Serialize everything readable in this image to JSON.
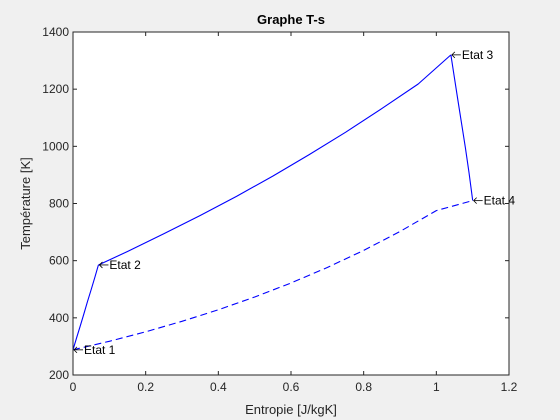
{
  "chart_data": {
    "type": "line",
    "title": "Graphe T-s",
    "xlabel": "Entropie [J/kgK]",
    "ylabel": "Température [K]",
    "xlim": [
      0,
      1.2
    ],
    "ylim": [
      200,
      1400
    ],
    "x_ticks": [
      0,
      0.2,
      0.4,
      0.6,
      0.8,
      1,
      1.2
    ],
    "x_tick_labels": [
      "0",
      "0.2",
      "0.4",
      "0.6",
      "0.8",
      "1",
      "1.2"
    ],
    "y_ticks": [
      200,
      400,
      600,
      800,
      1000,
      1200,
      1400
    ],
    "y_tick_labels": [
      "200",
      "400",
      "600",
      "800",
      "1000",
      "1200",
      "1400"
    ],
    "grid": false,
    "color": "#0000ff",
    "series": [
      {
        "style": "solid",
        "x": [
          0,
          0.01,
          0.02,
          0.03,
          0.04,
          0.05,
          0.06,
          0.07
        ],
        "y": [
          288,
          330,
          372,
          414,
          457,
          499,
          541,
          585
        ]
      },
      {
        "style": "solid",
        "x": [
          0.07,
          0.15,
          0.25,
          0.35,
          0.45,
          0.55,
          0.65,
          0.75,
          0.85,
          0.95,
          1.04
        ],
        "y": [
          585,
          632,
          694,
          758,
          825,
          896,
          971,
          1049,
          1132,
          1218,
          1320
        ]
      },
      {
        "style": "solid",
        "x": [
          1.04,
          1.05,
          1.06,
          1.07,
          1.08,
          1.09,
          1.1
        ],
        "y": [
          1320,
          1238,
          1157,
          1075,
          995,
          908,
          810
        ]
      },
      {
        "style": "dashed",
        "x": [
          0,
          0.1,
          0.2,
          0.3,
          0.4,
          0.5,
          0.6,
          0.7,
          0.8,
          0.9,
          1.0,
          1.1
        ],
        "y": [
          288,
          318,
          351,
          388,
          428,
          473,
          522,
          576,
          636,
          702,
          775,
          810
        ]
      }
    ],
    "annotations": [
      {
        "text": "Etat 1",
        "x": 0.0,
        "y": 288
      },
      {
        "text": "Etat 2",
        "x": 0.07,
        "y": 585
      },
      {
        "text": "Etat 3",
        "x": 1.04,
        "y": 1320
      },
      {
        "text": "Etat 4",
        "x": 1.1,
        "y": 810
      }
    ]
  }
}
